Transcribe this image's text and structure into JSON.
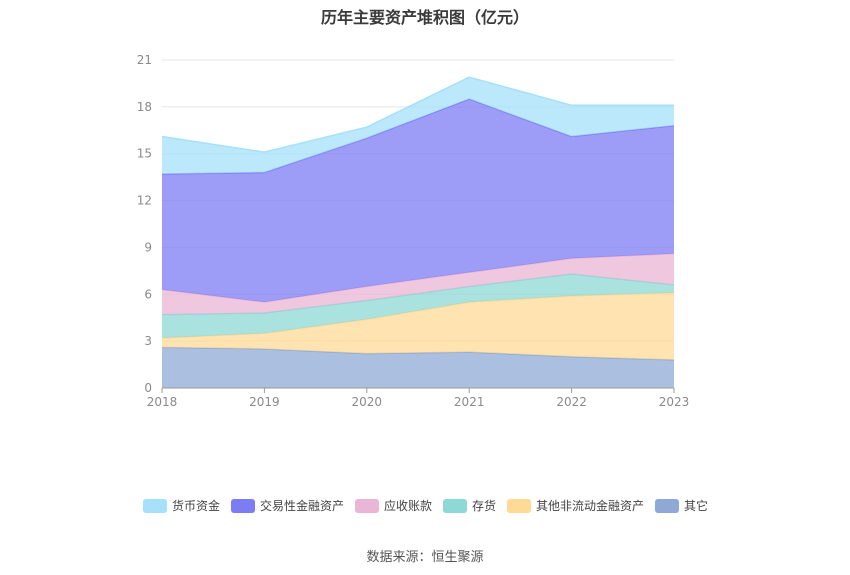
{
  "title": "历年主要资产堆积图（亿元）",
  "source": "数据来源：恒生聚源",
  "chart_data": {
    "type": "area",
    "stacked": true,
    "title": "历年主要资产堆积图（亿元）",
    "categories": [
      "2018",
      "2019",
      "2020",
      "2021",
      "2022",
      "2023"
    ],
    "ylim": [
      0,
      21
    ],
    "yticks": [
      0,
      3,
      6,
      9,
      12,
      15,
      18,
      21
    ],
    "grid": true,
    "legend_position": "bottom",
    "series": [
      {
        "name": "其它",
        "color": "#8fa9d6",
        "values": [
          2.6,
          2.5,
          2.2,
          2.3,
          2.0,
          1.8
        ]
      },
      {
        "name": "其他非流动金融资产",
        "color": "#ffd996",
        "values": [
          0.6,
          1.0,
          2.2,
          3.2,
          3.9,
          4.3
        ]
      },
      {
        "name": "存货",
        "color": "#8ed8d6",
        "values": [
          1.5,
          1.3,
          1.2,
          1.0,
          1.4,
          0.5
        ]
      },
      {
        "name": "应收账款",
        "color": "#e9b6d6",
        "values": [
          1.6,
          0.7,
          0.9,
          0.9,
          1.0,
          2.0
        ]
      },
      {
        "name": "交易性金融资产",
        "color": "#7c7cf4",
        "values": [
          7.4,
          8.3,
          9.5,
          11.1,
          7.8,
          8.2
        ]
      },
      {
        "name": "货币资金",
        "color": "#a6e0fa",
        "values": [
          2.4,
          1.3,
          0.7,
          1.4,
          2.0,
          1.3
        ]
      }
    ],
    "legend_order": [
      "货币资金",
      "交易性金融资产",
      "应收账款",
      "存货",
      "其他非流动金融资产",
      "其它"
    ]
  }
}
